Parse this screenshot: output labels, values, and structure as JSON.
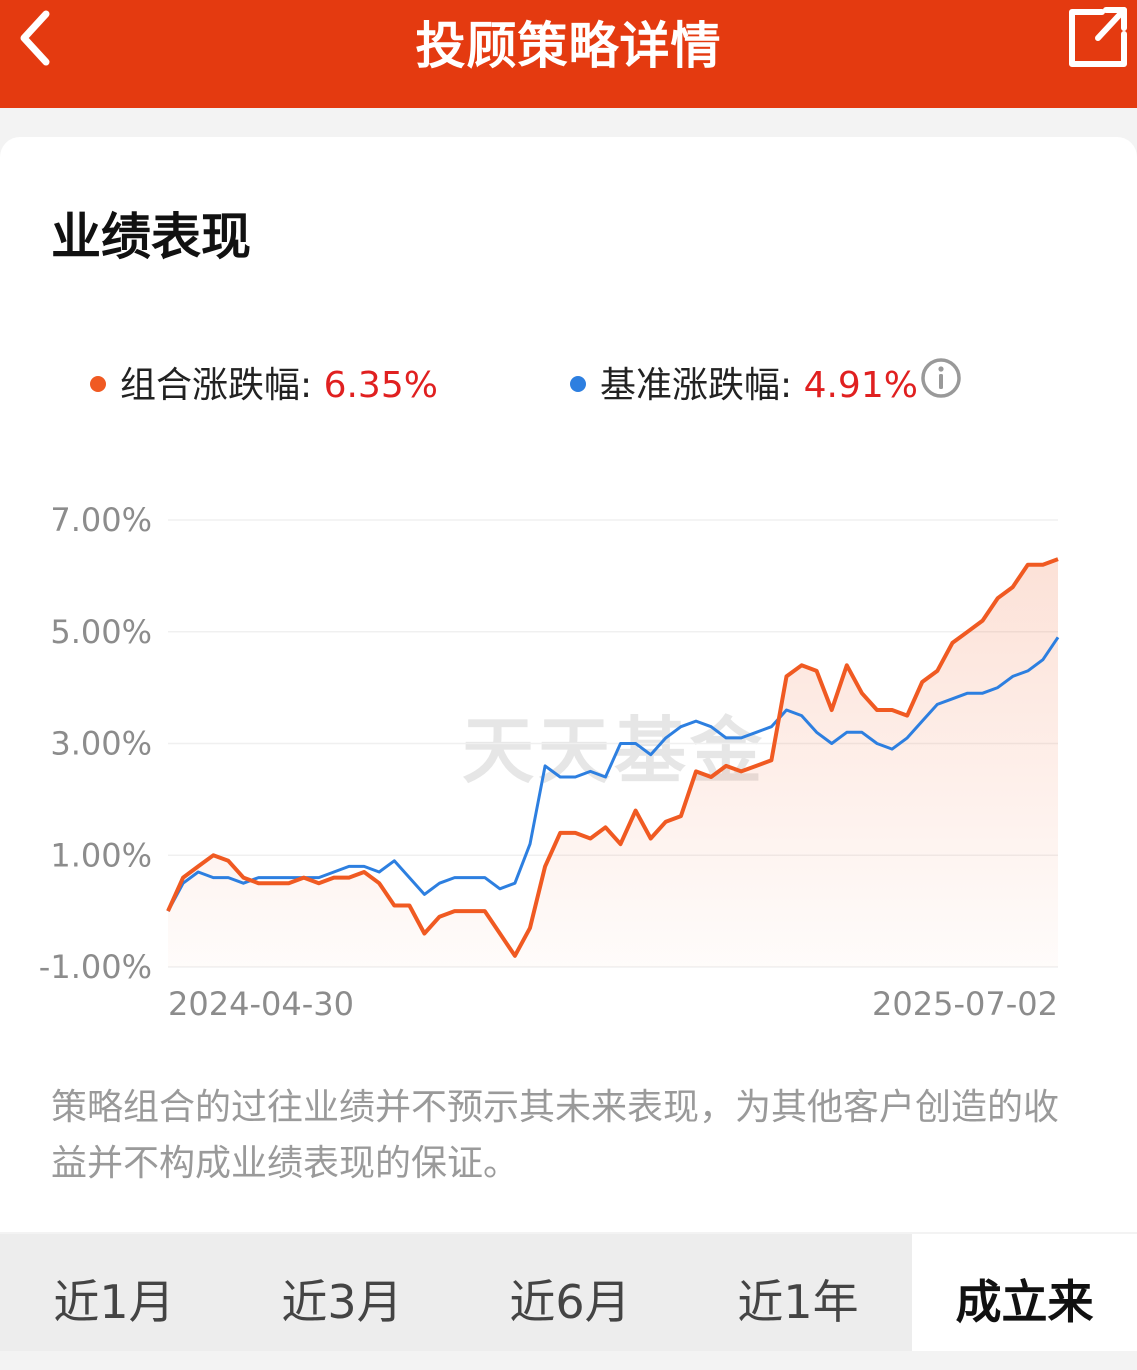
{
  "header": {
    "title": "投顾策略详情"
  },
  "section": {
    "title": "业绩表现"
  },
  "legend": {
    "portfolio": {
      "label": "组合涨跌幅: ",
      "value": "6.35%",
      "color": "#f05a22"
    },
    "benchmark": {
      "label": "基准涨跌幅: ",
      "value": "4.91%",
      "color": "#2d7fe0"
    }
  },
  "watermark": "天天基金",
  "chart_data": {
    "type": "line",
    "ylim": [
      -1.0,
      7.0
    ],
    "y_ticks": [
      "7.00%",
      "5.00%",
      "3.00%",
      "1.00%",
      "-1.00%"
    ],
    "x_labels": [
      "2024-04-30",
      "2025-07-02"
    ],
    "grid": true,
    "legend_position": "top",
    "series": [
      {
        "name": "组合涨跌幅",
        "color": "#f05a22",
        "values": [
          0.0,
          0.6,
          0.8,
          1.0,
          0.9,
          0.6,
          0.5,
          0.5,
          0.5,
          0.6,
          0.5,
          0.6,
          0.6,
          0.7,
          0.5,
          0.1,
          0.1,
          -0.4,
          -0.1,
          0.0,
          0.0,
          0.0,
          -0.4,
          -0.8,
          -0.3,
          0.8,
          1.4,
          1.4,
          1.3,
          1.5,
          1.2,
          1.8,
          1.3,
          1.6,
          1.7,
          2.5,
          2.4,
          2.6,
          2.5,
          2.6,
          2.7,
          4.2,
          4.4,
          4.3,
          3.6,
          4.4,
          3.9,
          3.6,
          3.6,
          3.5,
          4.1,
          4.3,
          4.8,
          5.0,
          5.2,
          5.6,
          5.8,
          6.2,
          6.2,
          6.3
        ]
      },
      {
        "name": "基准涨跌幅",
        "color": "#2d7fe0",
        "values": [
          0.0,
          0.5,
          0.7,
          0.6,
          0.6,
          0.5,
          0.6,
          0.6,
          0.6,
          0.6,
          0.6,
          0.7,
          0.8,
          0.8,
          0.7,
          0.9,
          0.6,
          0.3,
          0.5,
          0.6,
          0.6,
          0.6,
          0.4,
          0.5,
          1.2,
          2.6,
          2.4,
          2.4,
          2.5,
          2.4,
          3.0,
          3.0,
          2.8,
          3.1,
          3.3,
          3.4,
          3.3,
          3.1,
          3.1,
          3.2,
          3.3,
          3.6,
          3.5,
          3.2,
          3.0,
          3.2,
          3.2,
          3.0,
          2.9,
          3.1,
          3.4,
          3.7,
          3.8,
          3.9,
          3.9,
          4.0,
          4.2,
          4.3,
          4.5,
          4.9
        ]
      }
    ]
  },
  "disclaimer": "策略组合的过往业绩并不预示其未来表现，为其他客户创造的收益并不构成业绩表现的保证。",
  "tabs": [
    {
      "label": "近1月",
      "active": false
    },
    {
      "label": "近3月",
      "active": false
    },
    {
      "label": "近6月",
      "active": false
    },
    {
      "label": "近1年",
      "active": false
    },
    {
      "label": "成立来",
      "active": true
    }
  ],
  "icons": {
    "back": "chevron-left-icon",
    "share": "share-external-icon",
    "info": "info-circle-icon"
  }
}
